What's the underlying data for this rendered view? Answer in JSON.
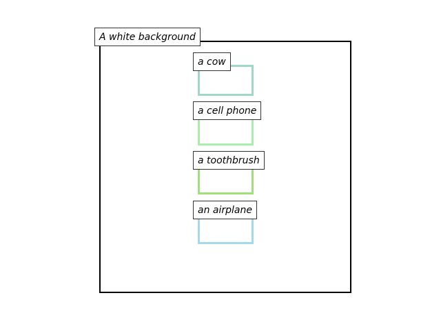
{
  "background_label": "A white background",
  "objects": [
    {
      "label": "a cow",
      "color": "#9fd9c3"
    },
    {
      "label": "a cell phone",
      "color": "#a8f0a8"
    },
    {
      "label": "a toothbrush",
      "color": "#9ee07a"
    },
    {
      "label": "an airplane",
      "color": "#a3d9ef"
    }
  ]
}
